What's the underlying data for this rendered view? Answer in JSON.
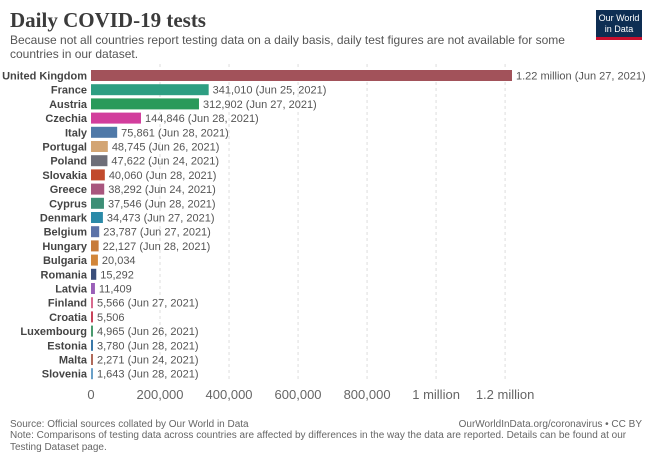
{
  "title": "Daily COVID-19 tests",
  "subtitle": "Because not all countries report testing data on a daily basis, daily test figures are not available for some countries in our dataset.",
  "logo": {
    "line1": "Our World",
    "line2": "in Data"
  },
  "source": "Source: Official sources collated by Our World in Data",
  "url": "OurWorldInData.org/coronavirus • CC BY",
  "note": "Note: Comparisons of testing data across countries are affected by differences in the way the data are reported. Details can be found at our Testing Dataset page.",
  "chart_data": {
    "type": "bar",
    "orientation": "horizontal",
    "xlim": [
      0,
      1220000
    ],
    "grid": true,
    "ticks": [
      {
        "value": 0,
        "label": "0"
      },
      {
        "value": 200000,
        "label": "200,000"
      },
      {
        "value": 400000,
        "label": "400,000"
      },
      {
        "value": 600000,
        "label": "600,000"
      },
      {
        "value": 800000,
        "label": "800,000"
      },
      {
        "value": 1000000,
        "label": "1 million"
      },
      {
        "value": 1200000,
        "label": "1.2 million"
      }
    ],
    "bars": [
      {
        "country": "United Kingdom",
        "value": 1220000,
        "label": "1.22 million (Jun 27, 2021)",
        "color": "#a2525a"
      },
      {
        "country": "France",
        "value": 341010,
        "label": "341,010 (Jun 25, 2021)",
        "color": "#2e9e82"
      },
      {
        "country": "Austria",
        "value": 312902,
        "label": "312,902 (Jun 27, 2021)",
        "color": "#2a9a5a"
      },
      {
        "country": "Czechia",
        "value": 144846,
        "label": "144,846 (Jun 28, 2021)",
        "color": "#d23d9c"
      },
      {
        "country": "Italy",
        "value": 75861,
        "label": "75,861 (Jun 28, 2021)",
        "color": "#4f79a8"
      },
      {
        "country": "Portugal",
        "value": 48745,
        "label": "48,745 (Jun 26, 2021)",
        "color": "#d3a574"
      },
      {
        "country": "Poland",
        "value": 47622,
        "label": "47,622 (Jun 24, 2021)",
        "color": "#6e6e78"
      },
      {
        "country": "Slovakia",
        "value": 40060,
        "label": "40,060 (Jun 28, 2021)",
        "color": "#c14a2c"
      },
      {
        "country": "Greece",
        "value": 38292,
        "label": "38,292 (Jun 24, 2021)",
        "color": "#a8567e"
      },
      {
        "country": "Cyprus",
        "value": 37546,
        "label": "37,546 (Jun 28, 2021)",
        "color": "#3d8f76"
      },
      {
        "country": "Denmark",
        "value": 34473,
        "label": "34,473 (Jun 27, 2021)",
        "color": "#2b8aa8"
      },
      {
        "country": "Belgium",
        "value": 23787,
        "label": "23,787 (Jun 27, 2021)",
        "color": "#5b72a8"
      },
      {
        "country": "Hungary",
        "value": 22127,
        "label": "22,127 (Jun 28, 2021)",
        "color": "#c77b3a"
      },
      {
        "country": "Bulgaria",
        "value": 20034,
        "label": "20,034",
        "color": "#d2863a"
      },
      {
        "country": "Romania",
        "value": 15292,
        "label": "15,292",
        "color": "#3a4e7a"
      },
      {
        "country": "Latvia",
        "value": 11409,
        "label": "11,409",
        "color": "#9a5fb8"
      },
      {
        "country": "Finland",
        "value": 5566,
        "label": "5,566 (Jun 27, 2021)",
        "color": "#d86a8e"
      },
      {
        "country": "Croatia",
        "value": 5506,
        "label": "5,506",
        "color": "#c8435a"
      },
      {
        "country": "Luxembourg",
        "value": 4965,
        "label": "4,965 (Jun 26, 2021)",
        "color": "#4a9a6e"
      },
      {
        "country": "Estonia",
        "value": 3780,
        "label": "3,780 (Jun 28, 2021)",
        "color": "#3a78a8"
      },
      {
        "country": "Malta",
        "value": 2271,
        "label": "2,271 (Jun 24, 2021)",
        "color": "#b06a5a"
      },
      {
        "country": "Slovenia",
        "value": 1643,
        "label": "1,643 (Jun 28, 2021)",
        "color": "#6aa0c8"
      }
    ]
  }
}
